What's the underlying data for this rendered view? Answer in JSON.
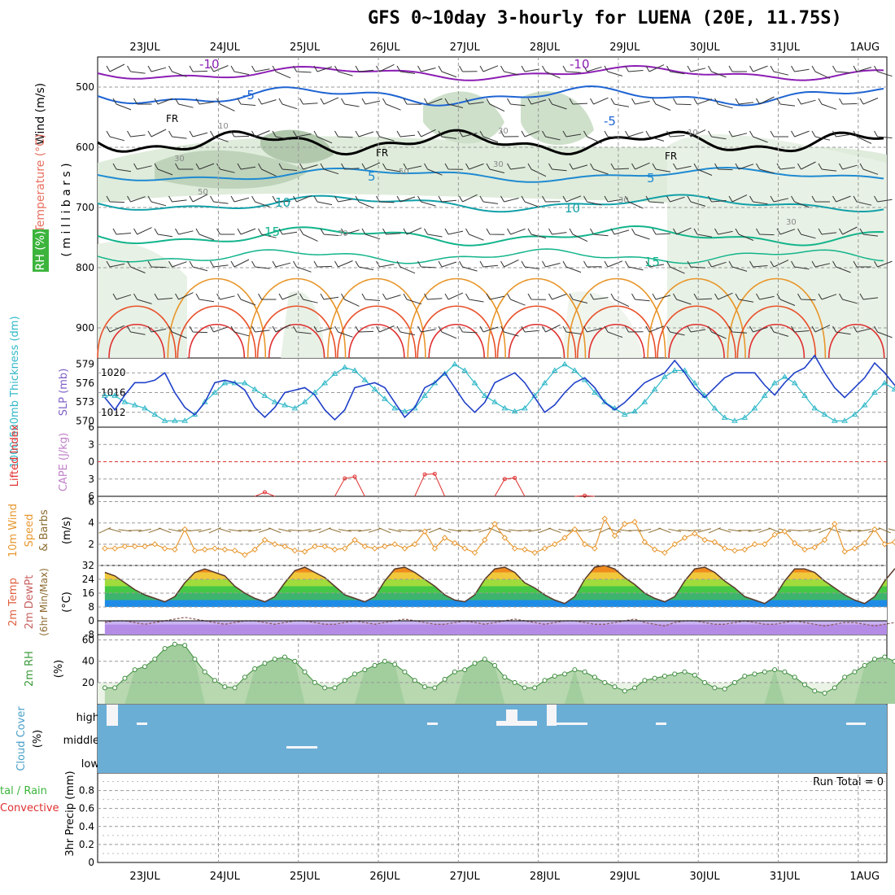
{
  "title": "GFS 0~10day 3-hourly for LUENA (20E, 11.75S)",
  "colors": {
    "temp_warm": "#e8502a",
    "temp_orange": "#e8962a",
    "temp_teal": "#12b48c",
    "temp_blue": "#1e64d2",
    "temp_purple": "#8c1eb4",
    "freezing": "#000000",
    "slp": "#2040c8",
    "thickness": "#30b8c8",
    "lifted_index": "#e03030",
    "wind10m": "#e89830",
    "rh2m": "#3c9c3c",
    "cloud": "#6aaed6",
    "grid": "#888888"
  },
  "date_labels": [
    "23JUL",
    "24JUL",
    "25JUL",
    "26JUL",
    "27JUL",
    "28JUL",
    "29JUL",
    "30JUL",
    "31JUL",
    "1AUG"
  ],
  "labels": {
    "wind": "Wind (m/s)",
    "temperature": "Temperature (°C)",
    "rh": "RH (%)",
    "millibars": "( m i l l i b a r s )",
    "thickness": "1000-500mb Thickness (dm)",
    "slp": "SLP (mb)",
    "lifted": "Lifted Index",
    "cape": "CAPE (J/kg)",
    "wind10": "10m Wind",
    "speed": "Speed",
    "ms": "(m/s)",
    "barbs": "& Barbs",
    "temp2m": "2m Temp",
    "dewpt": "2m DewPt",
    "minmax": "(6hr Min/Max)",
    "degc": "(°C)",
    "rh2m": "2m RH",
    "pct": "(%)",
    "cloud": "Cloud Cover",
    "cloudpct": "(%)",
    "precip": "3hr Precip (mm)",
    "total_rain": "tal / Rain",
    "convective": "Convective",
    "run_total": "Run Total = 0"
  },
  "contour_labels": {
    "temp": [
      "-10",
      "-10",
      "-5",
      "-5",
      "5",
      "5",
      "10",
      "10",
      "15",
      "15"
    ],
    "freezing": [
      "FR",
      "FR",
      "FR"
    ],
    "rh": [
      "10",
      "30",
      "30",
      "50",
      "50",
      "30",
      "10",
      "30",
      "30",
      "30"
    ]
  },
  "upper_panel": {
    "pressure_ticks": [
      "500",
      "600",
      "700",
      "800",
      "900"
    ]
  },
  "chart_data": [
    {
      "type": "line",
      "panel": "sea level pressure and thickness",
      "x_unit": "3-hourly steps from 22JUL 12Z",
      "series": [
        {
          "name": "SLP (mb)",
          "values": [
            1015,
            1012.5,
            1015.5,
            1018,
            1018,
            1018.5,
            1020,
            1016,
            1013,
            1011.5,
            1014,
            1018,
            1018.5,
            1018,
            1016.5,
            1013,
            1011,
            1013,
            1016,
            1016.5,
            1017,
            1015.5,
            1012.5,
            1010.5,
            1012.5,
            1017,
            1017.5,
            1018,
            1017,
            1014,
            1011,
            1013,
            1017,
            1018,
            1020,
            1017,
            1014,
            1012,
            1014,
            1018,
            1019,
            1020,
            1018,
            1015,
            1012,
            1013.5,
            1016,
            1018,
            1019,
            1017,
            1014,
            1012.5,
            1014,
            1016,
            1018,
            1019,
            1020,
            1022.5,
            1020,
            1017,
            1015,
            1017,
            1019,
            1020,
            1020,
            1020,
            1017.5,
            1015.5,
            1018,
            1020,
            1021,
            1023.5,
            1020,
            1017,
            1015,
            1017,
            1019,
            1022,
            1020,
            1017.5,
            1018.5,
            1020,
            1021,
            1022.5
          ]
        },
        {
          "name": "1000-500mb Thickness (dm)",
          "values": [
            574,
            574,
            573,
            572.5,
            572,
            571,
            570,
            570,
            570,
            571,
            573,
            574.5,
            576,
            576,
            576,
            575,
            574,
            573,
            572.5,
            572,
            573,
            574.5,
            576,
            577.5,
            578.5,
            578,
            576.5,
            575,
            573.5,
            572,
            571.5,
            572,
            574,
            576,
            577.5,
            579,
            578,
            576,
            574,
            573,
            572,
            571.5,
            572,
            574,
            576,
            578,
            579,
            578,
            576.5,
            574.5,
            573,
            572,
            571,
            571.5,
            573,
            575,
            577,
            578,
            578,
            576,
            574,
            572,
            570.5,
            570,
            570.5,
            572,
            574,
            576,
            577,
            576,
            574,
            572,
            571,
            570,
            570,
            571,
            572.5,
            574.5,
            576,
            575,
            573,
            571.5,
            570.5,
            570,
            570.5
          ]
        }
      ],
      "ylim_slp": [
        1009,
        1023
      ],
      "ylim_thickness": [
        569,
        580
      ]
    },
    {
      "type": "line",
      "panel": "lifted index",
      "ylim": [
        6,
        -6
      ],
      "ticks": [
        6,
        3,
        0,
        -3,
        -6
      ],
      "segments": [
        {
          "x": [
            15,
            16,
            17
          ],
          "values": [
            6,
            5.3,
            6
          ]
        },
        {
          "x": [
            23,
            24,
            25,
            26
          ],
          "values": [
            6,
            2.9,
            2.6,
            6
          ]
        },
        {
          "x": [
            31,
            32,
            33,
            34
          ],
          "values": [
            6,
            2.2,
            2.1,
            6
          ]
        },
        {
          "x": [
            39,
            40,
            41,
            42
          ],
          "values": [
            6,
            3,
            2.8,
            6
          ]
        },
        {
          "x": [
            47,
            48,
            49
          ],
          "values": [
            6,
            5.9,
            6
          ]
        }
      ]
    },
    {
      "type": "line",
      "panel": "10m wind speed",
      "ylabel": "(m/s)",
      "ylim": [
        0,
        6.5
      ],
      "ticks": [
        2,
        4,
        6
      ],
      "values": [
        1.6,
        1.6,
        1.8,
        1.8,
        1.8,
        2,
        1.6,
        1.5,
        3.4,
        1.4,
        1.5,
        1.6,
        1.5,
        1.4,
        1,
        1.5,
        2.4,
        2,
        1.8,
        1.4,
        1.3,
        1.8,
        1.8,
        1.5,
        1.6,
        2.4,
        1.8,
        1.6,
        1.8,
        2,
        1.6,
        2,
        3.2,
        1.6,
        2.6,
        2.1,
        1.6,
        1.2,
        2.4,
        3.9,
        2.6,
        1.6,
        1.5,
        1.2,
        1.6,
        2,
        2.6,
        3.4,
        2,
        1.6,
        4.4,
        2.8,
        3.9,
        4.1,
        2.2,
        1.5,
        1.2,
        2,
        2.6,
        3,
        2.4,
        2.2,
        1.6,
        1.4,
        1.5,
        2,
        2,
        2.9,
        3.2,
        2.1,
        1.5,
        1.7,
        2.4,
        3.9,
        1.3,
        1.6,
        2.1,
        3.4,
        2,
        2.2,
        3.6,
        2.6,
        1.4,
        2.5
      ]
    },
    {
      "type": "area",
      "panel": "2m temperature and dew point",
      "ylabel": "(°C)",
      "ylim": [
        -8,
        32
      ],
      "ticks": [
        32,
        24,
        16,
        8,
        0,
        -8
      ],
      "series": [
        {
          "name": "2m Temp",
          "values": [
            28,
            26,
            22,
            18,
            15,
            13,
            11,
            14,
            22,
            28,
            30,
            28,
            26,
            20,
            16,
            13,
            11,
            14,
            22,
            29,
            31,
            28,
            25,
            20,
            15,
            13,
            11,
            14,
            23,
            30,
            31,
            28,
            24,
            20,
            15,
            12,
            11,
            15,
            24,
            30,
            31,
            28,
            22,
            19,
            15,
            12,
            10,
            14,
            24,
            31,
            32,
            30,
            25,
            21,
            16,
            13,
            11,
            14,
            23,
            30,
            31,
            28,
            23,
            19,
            14,
            12,
            10,
            14,
            23,
            30,
            30,
            28,
            23,
            19,
            15,
            12,
            10,
            14,
            23,
            30,
            31,
            29,
            24,
            20,
            15,
            13,
            11,
            14
          ]
        },
        {
          "name": "2m DewPt",
          "values": [
            -1,
            0,
            0,
            -1,
            -2,
            -1,
            0,
            1,
            2,
            1,
            0,
            -1,
            -2,
            -1,
            0,
            0,
            -1,
            -2,
            -1,
            0,
            0,
            -1,
            -2,
            -2,
            -1,
            0,
            -1,
            -2,
            -1,
            0,
            1,
            0,
            -1,
            -2,
            -2,
            -1,
            0,
            -1,
            -2,
            -1,
            0,
            1,
            0,
            -1,
            -2,
            -1,
            0,
            0,
            -1,
            -2,
            -2,
            -1,
            0,
            1,
            -1,
            -2,
            -3,
            -1,
            0,
            0,
            -1,
            -2,
            -2,
            -1,
            0,
            -1,
            -2,
            -2,
            -1,
            0,
            -1,
            -2,
            -3,
            -2,
            -1,
            -1,
            -2,
            -3,
            -2,
            -1,
            -2,
            -3,
            -2,
            -1
          ]
        }
      ]
    },
    {
      "type": "area",
      "panel": "2m relative humidity",
      "ylabel": "(%)",
      "ylim": [
        0,
        60
      ],
      "ticks": [
        20,
        40,
        60
      ],
      "values": [
        15,
        15,
        24,
        32,
        35,
        42,
        52,
        56,
        55,
        42,
        30,
        22,
        16,
        15,
        25,
        33,
        38,
        42,
        44,
        40,
        30,
        20,
        15,
        15,
        22,
        28,
        32,
        36,
        40,
        37,
        30,
        22,
        16,
        15,
        23,
        30,
        32,
        38,
        42,
        36,
        25,
        20,
        15,
        15,
        22,
        26,
        28,
        32,
        30,
        25,
        20,
        16,
        12,
        15,
        22,
        24,
        26,
        28,
        30,
        27,
        20,
        15,
        14,
        20,
        26,
        28,
        30,
        32,
        30,
        25,
        18,
        12,
        10,
        15,
        25,
        30,
        36,
        42,
        44,
        40,
        30,
        20,
        15,
        15,
        20,
        22,
        26
      ]
    },
    {
      "type": "bar",
      "panel": "cloud cover",
      "categories": [
        "high",
        "middle",
        "low"
      ],
      "note": "high cloud near 0 at most steps with small gaps; low cloud 0"
    },
    {
      "type": "line",
      "panel": "3hr precipitation",
      "ylabel": "3hr Precip (mm)",
      "ylim": [
        0,
        0.95
      ],
      "ticks": [
        0,
        0.2,
        0.4,
        0.6,
        0.8
      ],
      "values": [
        0,
        0,
        0,
        0,
        0,
        0,
        0,
        0,
        0,
        0,
        0,
        0,
        0,
        0,
        0,
        0,
        0,
        0,
        0,
        0,
        0,
        0,
        0,
        0,
        0,
        0,
        0,
        0,
        0,
        0,
        0,
        0,
        0,
        0,
        0,
        0,
        0,
        0,
        0,
        0,
        0,
        0,
        0,
        0,
        0,
        0,
        0,
        0,
        0,
        0,
        0,
        0,
        0,
        0,
        0,
        0,
        0,
        0,
        0,
        0,
        0,
        0,
        0,
        0,
        0,
        0,
        0,
        0,
        0,
        0,
        0,
        0,
        0,
        0,
        0,
        0,
        0,
        0,
        0,
        0,
        0,
        0,
        0,
        0,
        0,
        0
      ]
    }
  ]
}
